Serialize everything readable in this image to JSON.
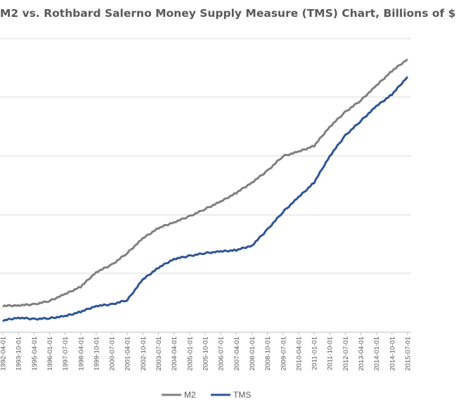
{
  "chart_data": {
    "type": "line",
    "title": "M2 vs. Rothbard Salerno Money Supply Measure (TMS) Chart, Billions of $",
    "xlabel": "",
    "ylabel": "",
    "grid": true,
    "legend_position": "bottom",
    "x": [
      "1992-04-01",
      "1993-10-01",
      "1995-04-01",
      "1996-01-01",
      "1997-07-01",
      "1998-04-01",
      "1999-10-01",
      "2000-07-01",
      "2001-04-01",
      "2002-10-01",
      "2003-07-01",
      "2004-04-01",
      "2005-01-01",
      "2005-10-01",
      "2006-07-01",
      "2007-04-01",
      "2008-01-01",
      "2008-10-01",
      "2009-07-01",
      "2010-04-01",
      "2011-01-01",
      "2011-10-01",
      "2012-07-01",
      "2013-04-01",
      "2014-01-01",
      "2014-10-01",
      "2015-07-01"
    ],
    "series": [
      {
        "name": "M2",
        "color": "#808080",
        "values": [
          3400,
          3420,
          3450,
          3570,
          3800,
          4050,
          4550,
          4800,
          5200,
          5700,
          6050,
          6250,
          6450,
          6700,
          6950,
          7250,
          7600,
          8000,
          8500,
          8650,
          8850,
          9500,
          10000,
          10400,
          10900,
          11400,
          11800
        ]
      },
      {
        "name": "TMS",
        "color": "#2F5597",
        "values": [
          2900,
          3000,
          2950,
          2980,
          3050,
          3200,
          3400,
          3450,
          3600,
          4300,
          4700,
          5000,
          5100,
          5200,
          5250,
          5300,
          5450,
          6000,
          6600,
          7100,
          7600,
          8500,
          9200,
          9700,
          10200,
          10600,
          11200
        ]
      }
    ]
  }
}
